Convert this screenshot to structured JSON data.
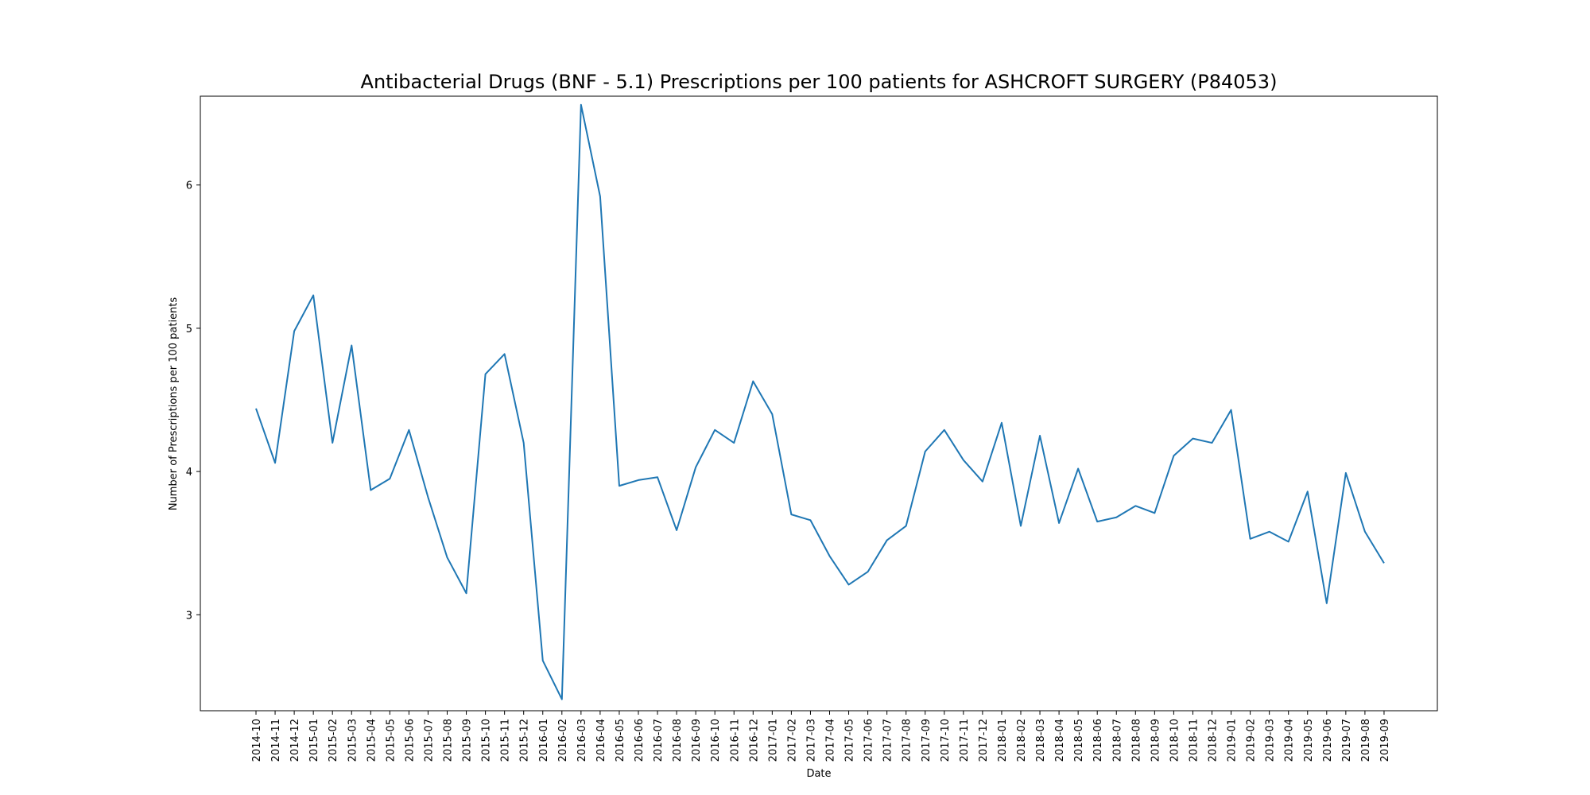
{
  "chart_data": {
    "type": "line",
    "title": "Antibacterial Drugs (BNF - 5.1) Prescriptions per 100 patients for ASHCROFT SURGERY (P84053)",
    "xlabel": "Date",
    "ylabel": "Number of Prescriptions per 100 patients",
    "ylim": [
      2.33,
      6.62
    ],
    "yticks": [
      3,
      4,
      5,
      6
    ],
    "grid": false,
    "line_color": "#1f77b4",
    "categories": [
      "2014-10",
      "2014-11",
      "2014-12",
      "2015-01",
      "2015-02",
      "2015-03",
      "2015-04",
      "2015-05",
      "2015-06",
      "2015-07",
      "2015-08",
      "2015-09",
      "2015-10",
      "2015-11",
      "2015-12",
      "2016-01",
      "2016-02",
      "2016-03",
      "2016-04",
      "2016-05",
      "2016-06",
      "2016-07",
      "2016-08",
      "2016-09",
      "2016-10",
      "2016-11",
      "2016-12",
      "2017-01",
      "2017-02",
      "2017-03",
      "2017-04",
      "2017-05",
      "2017-06",
      "2017-07",
      "2017-08",
      "2017-09",
      "2017-10",
      "2017-11",
      "2017-12",
      "2018-01",
      "2018-02",
      "2018-03",
      "2018-04",
      "2018-05",
      "2018-06",
      "2018-07",
      "2018-08",
      "2018-09",
      "2018-10",
      "2018-11",
      "2018-12",
      "2019-01",
      "2019-02",
      "2019-03",
      "2019-04",
      "2019-05",
      "2019-06",
      "2019-07",
      "2019-08",
      "2019-09"
    ],
    "series": [
      {
        "values": [
          4.44,
          4.06,
          4.98,
          5.23,
          4.2,
          4.88,
          3.87,
          3.95,
          4.29,
          3.82,
          3.4,
          3.15,
          4.68,
          4.82,
          4.2,
          2.68,
          2.41,
          6.56,
          5.92,
          3.9,
          3.94,
          3.96,
          3.59,
          4.03,
          4.29,
          4.2,
          4.63,
          4.4,
          3.7,
          3.66,
          3.41,
          3.21,
          3.3,
          3.52,
          3.62,
          4.14,
          4.29,
          4.08,
          3.93,
          4.34,
          3.62,
          4.25,
          3.64,
          4.02,
          3.65,
          3.68,
          3.76,
          3.71,
          4.11,
          4.23,
          4.2,
          4.43,
          3.53,
          3.58,
          3.51,
          3.86,
          3.08,
          3.99,
          3.58,
          3.36
        ]
      }
    ]
  }
}
